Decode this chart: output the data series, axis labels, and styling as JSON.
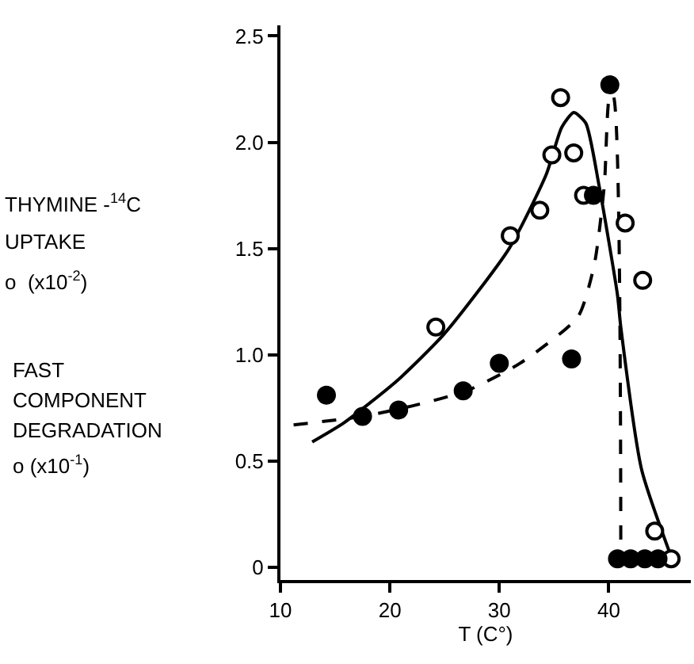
{
  "chart_data": {
    "type": "scatter",
    "xlabel": "T (C°)",
    "xlim": [
      10,
      47.5
    ],
    "ylim": [
      -0.06,
      2.55
    ],
    "xticks": [
      10,
      20,
      30,
      40
    ],
    "yticks": [
      0,
      0.5,
      {
        "value": 1.0,
        "label": "1.0"
      },
      1.5,
      {
        "value": 2.0,
        "label": "2.0"
      },
      2.5
    ],
    "annotations": [
      "THYMINE -$^{14}$C",
      "UPTAKE",
      "o  (x10$^{-2}$)",
      "FAST",
      "COMPONENT",
      "DEGRADATION",
      "o (x10$^{-1}$)"
    ],
    "series": [
      {
        "type": "line",
        "color": "#000000",
        "line_style": "solid",
        "x": [
          12.9,
          15.8,
          20.7,
          25.0,
          30.9,
          34.3,
          35.7,
          36.8,
          37.9,
          39.1,
          40.8,
          41.1,
          43.0,
          45.7
        ],
        "values": [
          0.59,
          0.68,
          0.88,
          1.1,
          1.5,
          1.85,
          2.07,
          2.14,
          2.09,
          1.8,
          1.28,
          1.13,
          0.46,
          0.05
        ]
      },
      {
        "type": "line",
        "color": "#000000",
        "line_style": "dashed",
        "x": [
          11.2,
          17.5,
          22.1,
          27.0,
          31.9,
          37.2,
          38.7,
          39.6,
          40.1,
          40.4,
          41.1
        ],
        "values": [
          0.67,
          0.71,
          0.76,
          0.83,
          0.96,
          1.18,
          1.43,
          1.8,
          2.22,
          2.22,
          0.04
        ]
      },
      {
        "marker": "circle",
        "color": "#ffffff",
        "x": [
          24.2,
          31.0,
          33.7,
          34.8,
          35.6,
          36.8,
          37.7,
          41.5,
          43.1,
          44.2,
          45.7
        ],
        "values": [
          1.13,
          1.56,
          1.68,
          1.94,
          2.21,
          1.95,
          1.75,
          1.62,
          1.35,
          0.17,
          0.04
        ]
      },
      {
        "marker": "circle",
        "color": "#000000",
        "x": [
          14.2,
          17.5,
          20.8,
          26.7,
          30.0,
          36.6,
          38.6,
          40.1,
          40.8,
          42.0,
          43.3,
          44.5
        ],
        "values": [
          0.81,
          0.71,
          0.74,
          0.83,
          0.96,
          0.98,
          1.75,
          2.27,
          0.04,
          0.04,
          0.04,
          0.04
        ]
      }
    ]
  }
}
